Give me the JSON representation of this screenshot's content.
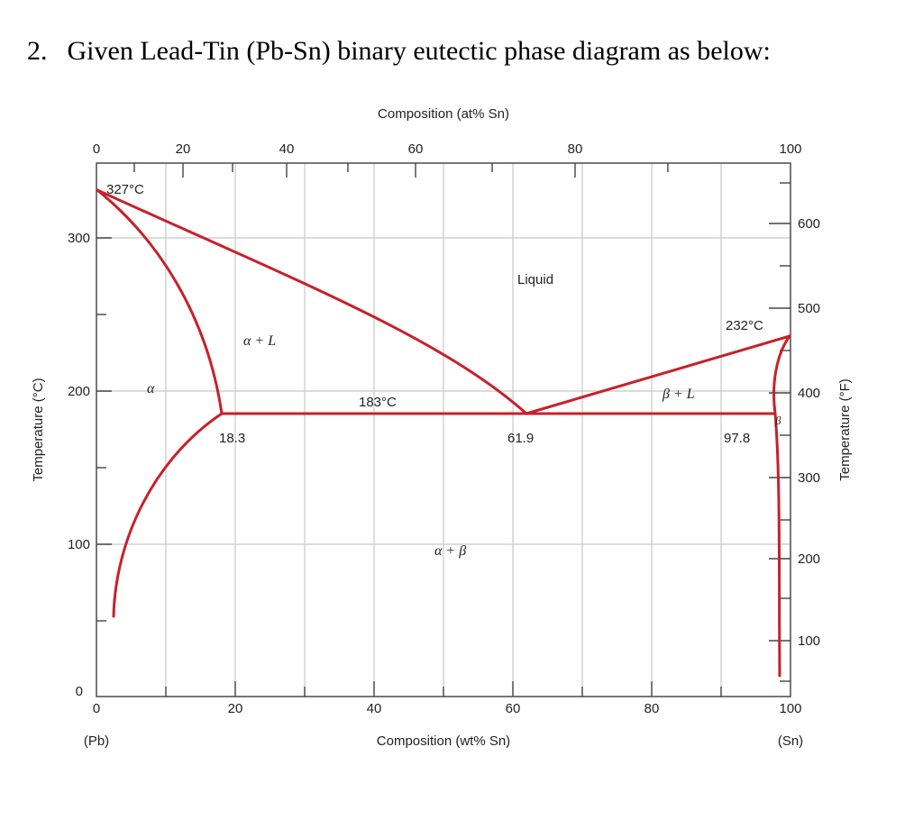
{
  "question": {
    "number": "2.",
    "text": "Given Lead-Tin (Pb-Sn) binary eutectic phase diagram as below:"
  },
  "diagram": {
    "top_axis_title": "Composition (at% Sn)",
    "bottom_axis_title": "Composition (wt% Sn)",
    "left_axis_title": "Temperature (°C)",
    "right_axis_title": "Temperature (°F)",
    "top_ticks": [
      {
        "value": 0,
        "label": "0"
      },
      {
        "value": 12.5,
        "label": "20"
      },
      {
        "value": 27,
        "label": "40"
      },
      {
        "value": 46,
        "label": "60"
      },
      {
        "value": 69,
        "label": "80"
      },
      {
        "value": 100,
        "label": "100"
      }
    ],
    "bottom_ticks": [
      {
        "value": 0,
        "label": "0"
      },
      {
        "value": 20,
        "label": "20"
      },
      {
        "value": 40,
        "label": "40"
      },
      {
        "value": 60,
        "label": "60"
      },
      {
        "value": 80,
        "label": "80"
      },
      {
        "value": 100,
        "label": "100"
      }
    ],
    "left_ticks": [
      {
        "value": 0,
        "label": "0"
      },
      {
        "value": 100,
        "label": "100"
      },
      {
        "value": 200,
        "label": "200"
      },
      {
        "value": 300,
        "label": "300"
      }
    ],
    "right_ticks": [
      {
        "value": 100,
        "label": "100"
      },
      {
        "value": 200,
        "label": "200"
      },
      {
        "value": 300,
        "label": "300"
      },
      {
        "value": 400,
        "label": "400"
      },
      {
        "value": 500,
        "label": "500"
      },
      {
        "value": 600,
        "label": "600"
      }
    ],
    "end_labels": {
      "left": "(Pb)",
      "right": "(Sn)"
    },
    "phase_labels": {
      "liquid": "Liquid",
      "alpha_plus_liquid": "α + L",
      "alpha": "α",
      "beta_plus_liquid": "β + L",
      "beta": "β",
      "alpha_plus_beta": "α + β"
    },
    "annotations": {
      "pb_melting": "327°C",
      "sn_melting": "232°C",
      "eutectic_temp": "183°C",
      "alpha_max": "18.3",
      "eutectic_comp": "61.9",
      "beta_max": "97.8"
    },
    "colors": {
      "phase_lines": "#c8202a",
      "grid": "#c8c8c8"
    }
  }
}
